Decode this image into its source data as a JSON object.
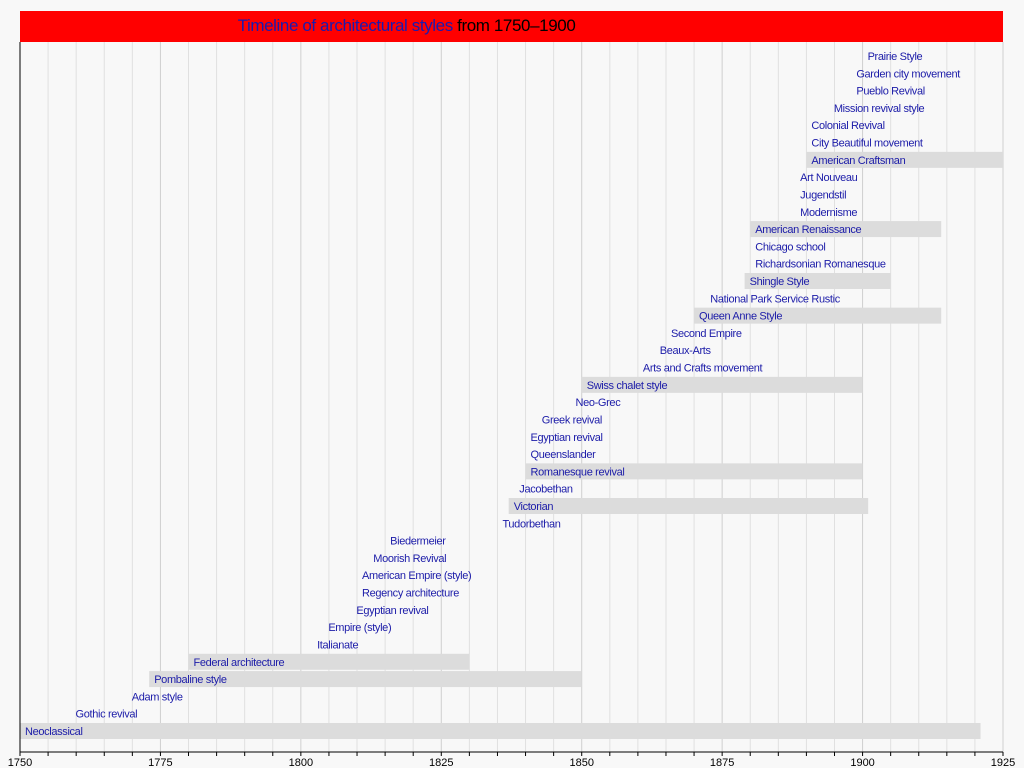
{
  "chart_data": {
    "type": "timeline",
    "title": {
      "link": "Timeline of architectural styles",
      "rest": "from 1750–1900"
    },
    "title_bar_color": "#ff0000",
    "bar_color": "#dcdcdc",
    "label_color": "#1b1ba8",
    "xlim": [
      1750,
      1925
    ],
    "x_ticks": [
      1750,
      1775,
      1800,
      1825,
      1850,
      1875,
      1900,
      1925
    ],
    "grid": "vertical every 5 years",
    "items": [
      {
        "name": "Neoclassical",
        "start": 1750,
        "end": 1921
      },
      {
        "name": "Gothic revival",
        "start": 1759
      },
      {
        "name": "Adam style",
        "start": 1769
      },
      {
        "name": "Pombaline style",
        "start": 1773,
        "end": 1850
      },
      {
        "name": "Federal architecture",
        "start": 1780,
        "end": 1830
      },
      {
        "name": "Italianate",
        "start": 1802
      },
      {
        "name": "Empire (style)",
        "start": 1804
      },
      {
        "name": "Egyptian revival",
        "start": 1809
      },
      {
        "name": "Regency architecture",
        "start": 1810
      },
      {
        "name": "American Empire (style)",
        "start": 1810
      },
      {
        "name": "Moorish Revival",
        "start": 1812
      },
      {
        "name": "Biedermeier",
        "start": 1815
      },
      {
        "name": "Tudorbethan",
        "start": 1835
      },
      {
        "name": "Victorian",
        "start": 1837,
        "end": 1901
      },
      {
        "name": "Jacobethan",
        "start": 1838
      },
      {
        "name": "Romanesque revival",
        "start": 1840,
        "end": 1900
      },
      {
        "name": "Queenslander",
        "start": 1840
      },
      {
        "name": "Egyptian revival",
        "start": 1840
      },
      {
        "name": "Greek revival",
        "start": 1842
      },
      {
        "name": "Neo-Grec",
        "start": 1848
      },
      {
        "name": "Swiss chalet style",
        "start": 1850,
        "end": 1900
      },
      {
        "name": "Arts and Crafts movement",
        "start": 1860
      },
      {
        "name": "Beaux-Arts",
        "start": 1863
      },
      {
        "name": "Second Empire",
        "start": 1865
      },
      {
        "name": "Queen Anne Style",
        "start": 1870,
        "end": 1914
      },
      {
        "name": "National Park Service Rustic",
        "start": 1872
      },
      {
        "name": "Shingle Style",
        "start": 1879,
        "end": 1905
      },
      {
        "name": "Richardsonian Romanesque",
        "start": 1880
      },
      {
        "name": "Chicago school",
        "start": 1880
      },
      {
        "name": "American Renaissance",
        "start": 1880,
        "end": 1914
      },
      {
        "name": "Modernisme",
        "start": 1888
      },
      {
        "name": "Jugendstil",
        "start": 1888
      },
      {
        "name": "Art Nouveau",
        "start": 1888
      },
      {
        "name": "American Craftsman",
        "start": 1890,
        "end": 1925
      },
      {
        "name": "City Beautiful movement",
        "start": 1890
      },
      {
        "name": "Colonial Revival",
        "start": 1890
      },
      {
        "name": "Mission revival style",
        "start": 1894
      },
      {
        "name": "Pueblo Revival",
        "start": 1898
      },
      {
        "name": "Garden city movement",
        "start": 1898
      },
      {
        "name": "Prairie Style",
        "start": 1900
      }
    ]
  }
}
